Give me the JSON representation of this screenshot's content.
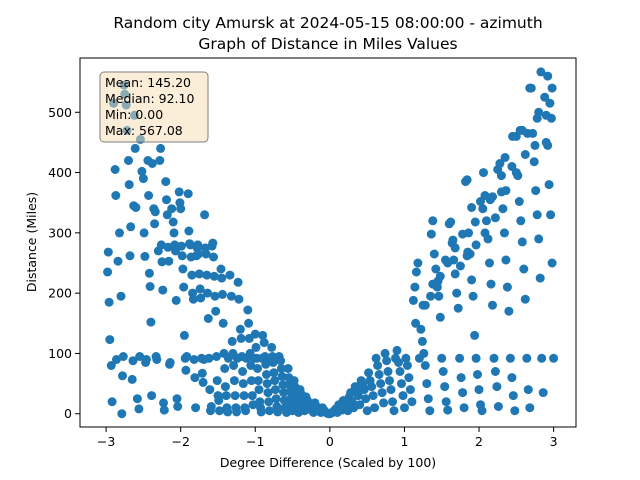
{
  "chart_data": {
    "type": "scatter",
    "title": "Random city Amursk at 2024-05-15 08:00:00  - azimuth",
    "subtitle": "Graph of Distance in Miles Values",
    "xlabel": "Degree Difference (Scaled by 100)",
    "ylabel": "Distance (Miles)",
    "xlim": [
      -3.35,
      3.3
    ],
    "ylim": [
      -22,
      590
    ],
    "x_ticks": [
      -3,
      -2,
      -1,
      0,
      1,
      2,
      3
    ],
    "x_tick_labels": [
      "−3",
      "−2",
      "−1",
      "0",
      "1",
      "2",
      "3"
    ],
    "y_ticks": [
      0,
      100,
      200,
      300,
      400,
      500
    ],
    "y_tick_labels": [
      "0",
      "100",
      "200",
      "300",
      "400",
      "500"
    ],
    "grid": false,
    "stats": {
      "mean": "Mean: 145.20",
      "median": "Median: 92.10",
      "min": "Min: 0.00",
      "max": "Max: 567.08"
    },
    "stats_placement": "top-left",
    "marker_color": "#1f77b4",
    "points": [
      [
        -2.98,
        235
      ],
      [
        -2.97,
        268
      ],
      [
        -2.96,
        185
      ],
      [
        -2.95,
        123
      ],
      [
        -2.93,
        80
      ],
      [
        -2.92,
        20
      ],
      [
        -2.9,
        515
      ],
      [
        -2.88,
        405
      ],
      [
        -2.87,
        362
      ],
      [
        -2.86,
        90
      ],
      [
        -2.84,
        253
      ],
      [
        -2.82,
        300
      ],
      [
        -2.8,
        195
      ],
      [
        -2.79,
        0
      ],
      [
        -2.78,
        63
      ],
      [
        -2.77,
        95
      ],
      [
        -2.76,
        545
      ],
      [
        -2.75,
        530
      ],
      [
        -2.73,
        512
      ],
      [
        -2.72,
        470
      ],
      [
        -2.7,
        420
      ],
      [
        -2.69,
        380
      ],
      [
        -2.68,
        262
      ],
      [
        -2.67,
        310
      ],
      [
        -2.65,
        57
      ],
      [
        -2.64,
        88
      ],
      [
        -2.63,
        345
      ],
      [
        -2.62,
        495
      ],
      [
        -2.61,
        440
      ],
      [
        -2.6,
        342
      ],
      [
        -2.58,
        25
      ],
      [
        -2.56,
        8
      ],
      [
        -2.55,
        95
      ],
      [
        -2.54,
        455
      ],
      [
        -2.52,
        402
      ],
      [
        -2.5,
        390
      ],
      [
        -2.49,
        300
      ],
      [
        -2.48,
        261
      ],
      [
        -2.47,
        85
      ],
      [
        -2.46,
        90
      ],
      [
        -2.44,
        420
      ],
      [
        -2.43,
        362
      ],
      [
        -2.42,
        233
      ],
      [
        -2.41,
        211
      ],
      [
        -2.4,
        152
      ],
      [
        -2.39,
        30
      ],
      [
        -2.38,
        415
      ],
      [
        -2.36,
        340
      ],
      [
        -2.35,
        315
      ],
      [
        -2.34,
        335
      ],
      [
        -2.33,
        95
      ],
      [
        -2.32,
        90
      ],
      [
        -2.3,
        270
      ],
      [
        -2.28,
        420
      ],
      [
        -2.27,
        440
      ],
      [
        -2.26,
        280
      ],
      [
        -2.25,
        252
      ],
      [
        -2.24,
        205
      ],
      [
        -2.23,
        18
      ],
      [
        -2.22,
        6
      ],
      [
        -2.2,
        385
      ],
      [
        -2.19,
        355
      ],
      [
        -2.18,
        330
      ],
      [
        -2.17,
        276
      ],
      [
        -2.16,
        253
      ],
      [
        -2.15,
        82
      ],
      [
        -2.14,
        85
      ],
      [
        -2.12,
        340
      ],
      [
        -2.1,
        318
      ],
      [
        -2.09,
        300
      ],
      [
        -2.08,
        280
      ],
      [
        -2.07,
        270
      ],
      [
        -2.06,
        188
      ],
      [
        -2.05,
        25
      ],
      [
        -2.04,
        12
      ],
      [
        -2.02,
        368
      ],
      [
        -2.01,
        350
      ],
      [
        -2.0,
        340
      ],
      [
        -1.99,
        278
      ],
      [
        -1.98,
        262
      ],
      [
        -1.97,
        240
      ],
      [
        -1.96,
        210
      ],
      [
        -1.95,
        130
      ],
      [
        -1.94,
        92
      ],
      [
        -1.93,
        72
      ],
      [
        -1.92,
        95
      ],
      [
        -1.9,
        365
      ],
      [
        -1.89,
        303
      ],
      [
        -1.88,
        282
      ],
      [
        -1.87,
        280
      ],
      [
        -1.86,
        260
      ],
      [
        -1.85,
        230
      ],
      [
        -1.84,
        200
      ],
      [
        -1.83,
        190
      ],
      [
        -1.82,
        90
      ],
      [
        -1.81,
        60
      ],
      [
        -1.8,
        10
      ],
      [
        -1.79,
        262
      ],
      [
        -1.78,
        275
      ],
      [
        -1.77,
        280
      ],
      [
        -1.76,
        265
      ],
      [
        -1.75,
        232
      ],
      [
        -1.74,
        207
      ],
      [
        -1.73,
        192
      ],
      [
        -1.72,
        92
      ],
      [
        -1.71,
        67
      ],
      [
        -1.7,
        52
      ],
      [
        -1.69,
        90
      ],
      [
        -1.68,
        330
      ],
      [
        -1.67,
        275
      ],
      [
        -1.66,
        265
      ],
      [
        -1.65,
        230
      ],
      [
        -1.64,
        200
      ],
      [
        -1.63,
        158
      ],
      [
        -1.62,
        92
      ],
      [
        -1.61,
        40
      ],
      [
        -1.6,
        5
      ],
      [
        -1.59,
        12
      ],
      [
        -1.58,
        278
      ],
      [
        -1.57,
        283
      ],
      [
        -1.56,
        260
      ],
      [
        -1.55,
        228
      ],
      [
        -1.54,
        195
      ],
      [
        -1.53,
        170
      ],
      [
        -1.52,
        95
      ],
      [
        -1.51,
        55
      ],
      [
        -1.5,
        30
      ],
      [
        -1.49,
        22
      ],
      [
        -1.48,
        5
      ],
      [
        -1.46,
        240
      ],
      [
        -1.45,
        225
      ],
      [
        -1.44,
        198
      ],
      [
        -1.43,
        150
      ],
      [
        -1.42,
        100
      ],
      [
        -1.41,
        75
      ],
      [
        -1.4,
        45
      ],
      [
        -1.39,
        30
      ],
      [
        -1.38,
        10
      ],
      [
        -1.37,
        3
      ],
      [
        -1.36,
        92
      ],
      [
        -1.34,
        230
      ],
      [
        -1.32,
        195
      ],
      [
        -1.31,
        120
      ],
      [
        -1.3,
        100
      ],
      [
        -1.29,
        80
      ],
      [
        -1.28,
        55
      ],
      [
        -1.27,
        30
      ],
      [
        -1.26,
        10
      ],
      [
        -1.25,
        3
      ],
      [
        -1.24,
        92
      ],
      [
        -1.23,
        218
      ],
      [
        -1.22,
        190
      ],
      [
        -1.2,
        140
      ],
      [
        -1.19,
        125
      ],
      [
        -1.18,
        95
      ],
      [
        -1.17,
        70
      ],
      [
        -1.16,
        50
      ],
      [
        -1.15,
        30
      ],
      [
        -1.14,
        10
      ],
      [
        -1.13,
        5
      ],
      [
        -1.12,
        92
      ],
      [
        -1.1,
        172
      ],
      [
        -1.09,
        150
      ],
      [
        -1.08,
        125
      ],
      [
        -1.07,
        100
      ],
      [
        -1.06,
        80
      ],
      [
        -1.05,
        55
      ],
      [
        -1.04,
        30
      ],
      [
        -1.03,
        15
      ],
      [
        -1.02,
        92
      ],
      [
        -1.0,
        132
      ],
      [
        -0.99,
        110
      ],
      [
        -0.98,
        92
      ],
      [
        -0.97,
        75
      ],
      [
        -0.96,
        55
      ],
      [
        -0.95,
        40
      ],
      [
        -0.94,
        20
      ],
      [
        -0.93,
        10
      ],
      [
        -0.92,
        3
      ],
      [
        -0.91,
        92
      ],
      [
        -0.9,
        130
      ],
      [
        -0.88,
        118
      ],
      [
        -0.87,
        95
      ],
      [
        -0.86,
        82
      ],
      [
        -0.85,
        65
      ],
      [
        -0.84,
        50
      ],
      [
        -0.83,
        35
      ],
      [
        -0.82,
        20
      ],
      [
        -0.81,
        5
      ],
      [
        -0.8,
        92
      ],
      [
        -0.78,
        110
      ],
      [
        -0.77,
        95
      ],
      [
        -0.76,
        85
      ],
      [
        -0.75,
        68
      ],
      [
        -0.74,
        55
      ],
      [
        -0.73,
        40
      ],
      [
        -0.72,
        25
      ],
      [
        -0.71,
        12
      ],
      [
        -0.7,
        3
      ],
      [
        -0.68,
        95
      ],
      [
        -0.66,
        88
      ],
      [
        -0.65,
        75
      ],
      [
        -0.64,
        62
      ],
      [
        -0.63,
        48
      ],
      [
        -0.62,
        35
      ],
      [
        -0.61,
        22
      ],
      [
        -0.6,
        10
      ],
      [
        -0.58,
        2
      ],
      [
        -0.56,
        75
      ],
      [
        -0.55,
        60
      ],
      [
        -0.54,
        48
      ],
      [
        -0.53,
        38
      ],
      [
        -0.52,
        26
      ],
      [
        -0.51,
        15
      ],
      [
        -0.5,
        5
      ],
      [
        -0.48,
        55
      ],
      [
        -0.47,
        45
      ],
      [
        -0.46,
        35
      ],
      [
        -0.45,
        28
      ],
      [
        -0.44,
        18
      ],
      [
        -0.43,
        10
      ],
      [
        -0.42,
        2
      ],
      [
        -0.4,
        40
      ],
      [
        -0.38,
        32
      ],
      [
        -0.37,
        25
      ],
      [
        -0.36,
        18
      ],
      [
        -0.35,
        12
      ],
      [
        -0.34,
        5
      ],
      [
        -0.32,
        28
      ],
      [
        -0.3,
        22
      ],
      [
        -0.28,
        15
      ],
      [
        -0.26,
        10
      ],
      [
        -0.24,
        5
      ],
      [
        -0.22,
        2
      ],
      [
        -0.2,
        18
      ],
      [
        -0.18,
        12
      ],
      [
        -0.16,
        8
      ],
      [
        -0.14,
        4
      ],
      [
        -0.12,
        2
      ],
      [
        -0.1,
        10
      ],
      [
        -0.08,
        6
      ],
      [
        -0.06,
        3
      ],
      [
        -0.04,
        1
      ],
      [
        -0.02,
        0
      ],
      [
        0.0,
        0
      ],
      [
        0.02,
        1
      ],
      [
        0.04,
        3
      ],
      [
        0.06,
        5
      ],
      [
        0.08,
        8
      ],
      [
        0.1,
        2
      ],
      [
        0.12,
        15
      ],
      [
        0.14,
        10
      ],
      [
        0.16,
        6
      ],
      [
        0.18,
        22
      ],
      [
        0.2,
        18
      ],
      [
        0.22,
        12
      ],
      [
        0.24,
        5
      ],
      [
        0.26,
        28
      ],
      [
        0.28,
        35
      ],
      [
        0.3,
        20
      ],
      [
        0.32,
        10
      ],
      [
        0.34,
        45
      ],
      [
        0.36,
        38
      ],
      [
        0.38,
        30
      ],
      [
        0.4,
        15
      ],
      [
        0.42,
        55
      ],
      [
        0.44,
        48
      ],
      [
        0.46,
        40
      ],
      [
        0.48,
        25
      ],
      [
        0.5,
        5
      ],
      [
        0.52,
        68
      ],
      [
        0.54,
        55
      ],
      [
        0.56,
        45
      ],
      [
        0.58,
        30
      ],
      [
        0.6,
        10
      ],
      [
        0.62,
        92
      ],
      [
        0.64,
        80
      ],
      [
        0.66,
        65
      ],
      [
        0.68,
        50
      ],
      [
        0.7,
        35
      ],
      [
        0.72,
        18
      ],
      [
        0.74,
        100
      ],
      [
        0.76,
        88
      ],
      [
        0.78,
        70
      ],
      [
        0.8,
        55
      ],
      [
        0.82,
        40
      ],
      [
        0.84,
        20
      ],
      [
        0.86,
        5
      ],
      [
        0.88,
        92
      ],
      [
        0.9,
        105
      ],
      [
        0.92,
        85
      ],
      [
        0.94,
        70
      ],
      [
        0.96,
        50
      ],
      [
        0.98,
        30
      ],
      [
        1.0,
        10
      ],
      [
        1.02,
        92
      ],
      [
        1.04,
        80
      ],
      [
        1.06,
        60
      ],
      [
        1.08,
        40
      ],
      [
        1.1,
        20
      ],
      [
        1.12,
        188
      ],
      [
        1.14,
        210
      ],
      [
        1.16,
        235
      ],
      [
        1.18,
        250
      ],
      [
        1.2,
        92
      ],
      [
        1.22,
        140
      ],
      [
        1.24,
        120
      ],
      [
        1.26,
        100
      ],
      [
        1.28,
        80
      ],
      [
        1.3,
        50
      ],
      [
        1.32,
        25
      ],
      [
        1.34,
        5
      ],
      [
        1.36,
        298
      ],
      [
        1.38,
        320
      ],
      [
        1.4,
        265
      ],
      [
        1.42,
        240
      ],
      [
        1.44,
        210
      ],
      [
        1.46,
        195
      ],
      [
        1.48,
        160
      ],
      [
        1.5,
        92
      ],
      [
        1.52,
        70
      ],
      [
        1.54,
        45
      ],
      [
        1.56,
        20
      ],
      [
        1.58,
        6
      ],
      [
        1.6,
        315
      ],
      [
        1.62,
        318
      ],
      [
        1.64,
        283
      ],
      [
        1.66,
        255
      ],
      [
        1.68,
        232
      ],
      [
        1.7,
        200
      ],
      [
        1.72,
        175
      ],
      [
        1.74,
        92
      ],
      [
        1.76,
        60
      ],
      [
        1.78,
        35
      ],
      [
        1.8,
        10
      ],
      [
        1.82,
        385
      ],
      [
        1.84,
        388
      ],
      [
        1.86,
        300
      ],
      [
        1.88,
        265
      ],
      [
        1.9,
        222
      ],
      [
        1.92,
        195
      ],
      [
        1.94,
        130
      ],
      [
        1.96,
        92
      ],
      [
        1.98,
        65
      ],
      [
        2.0,
        40
      ],
      [
        2.02,
        15
      ],
      [
        2.04,
        5
      ],
      [
        2.06,
        400
      ],
      [
        2.08,
        362
      ],
      [
        2.1,
        320
      ],
      [
        2.12,
        290
      ],
      [
        2.14,
        250
      ],
      [
        2.16,
        215
      ],
      [
        2.18,
        180
      ],
      [
        2.2,
        92
      ],
      [
        2.22,
        70
      ],
      [
        2.24,
        45
      ],
      [
        2.26,
        12
      ],
      [
        2.28,
        415
      ],
      [
        2.3,
        368
      ],
      [
        2.32,
        340
      ],
      [
        2.34,
        300
      ],
      [
        2.36,
        255
      ],
      [
        2.38,
        210
      ],
      [
        2.4,
        170
      ],
      [
        2.42,
        92
      ],
      [
        2.44,
        60
      ],
      [
        2.46,
        30
      ],
      [
        2.48,
        5
      ],
      [
        2.5,
        460
      ],
      [
        2.52,
        395
      ],
      [
        2.54,
        352
      ],
      [
        2.56,
        320
      ],
      [
        2.58,
        285
      ],
      [
        2.6,
        240
      ],
      [
        2.62,
        190
      ],
      [
        2.64,
        92
      ],
      [
        2.66,
        40
      ],
      [
        2.68,
        10
      ],
      [
        2.7,
        540
      ],
      [
        2.72,
        465
      ],
      [
        2.74,
        418
      ],
      [
        2.76,
        370
      ],
      [
        2.78,
        330
      ],
      [
        2.8,
        290
      ],
      [
        2.82,
        225
      ],
      [
        2.84,
        92
      ],
      [
        2.86,
        35
      ],
      [
        2.88,
        525
      ],
      [
        2.9,
        495
      ],
      [
        2.92,
        445
      ],
      [
        2.94,
        380
      ],
      [
        2.96,
        330
      ],
      [
        2.98,
        250
      ],
      [
        3.0,
        92
      ],
      [
        2.95,
        515
      ],
      [
        2.97,
        490
      ],
      [
        2.83,
        567
      ],
      [
        2.75,
        445
      ],
      [
        2.65,
        465
      ],
      [
        2.55,
        470
      ],
      [
        2.45,
        460
      ],
      [
        2.35,
        425
      ],
      [
        2.25,
        405
      ],
      [
        2.15,
        355
      ],
      [
        2.05,
        340
      ],
      [
        1.95,
        318
      ],
      [
        1.85,
        268
      ],
      [
        1.75,
        245
      ],
      [
        1.65,
        288
      ],
      [
        1.55,
        255
      ],
      [
        1.45,
        220
      ],
      [
        1.35,
        195
      ],
      [
        1.25,
        180
      ],
      [
        1.15,
        150
      ],
      [
        2.92,
        560
      ],
      [
        2.8,
        500
      ],
      [
        2.68,
        540
      ],
      [
        2.58,
        470
      ],
      [
        2.44,
        410
      ],
      [
        2.3,
        395
      ],
      [
        2.18,
        360
      ],
      [
        2.02,
        352
      ],
      [
        1.9,
        342
      ],
      [
        1.78,
        298
      ],
      [
        1.68,
        275
      ],
      [
        1.58,
        250
      ],
      [
        1.48,
        228
      ],
      [
        1.38,
        215
      ],
      [
        1.28,
        180
      ],
      [
        2.98,
        540
      ],
      [
        2.9,
        450
      ],
      [
        2.78,
        490
      ],
      [
        2.62,
        430
      ],
      [
        2.5,
        400
      ],
      [
        2.36,
        370
      ],
      [
        2.22,
        325
      ],
      [
        2.08,
        300
      ],
      [
        1.96,
        280
      ],
      [
        1.84,
        262
      ]
    ]
  }
}
